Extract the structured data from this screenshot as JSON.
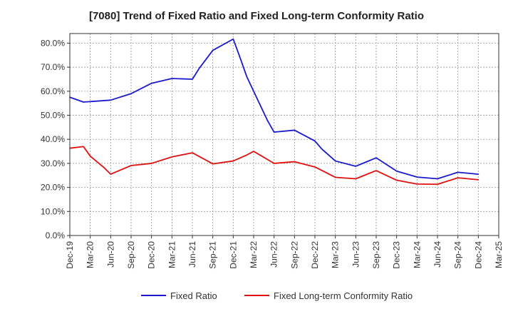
{
  "chart_data": {
    "type": "line",
    "title": "[7080]  Trend of Fixed Ratio and Fixed Long-term Conformity Ratio",
    "xlabel": "",
    "ylabel": "",
    "x_ticks": [
      "Dec-19",
      "Mar-20",
      "Jun-20",
      "Sep-20",
      "Dec-20",
      "Mar-21",
      "Jun-21",
      "Sep-21",
      "Dec-21",
      "Mar-22",
      "Jun-22",
      "Sep-22",
      "Dec-22",
      "Mar-23",
      "Jun-23",
      "Sep-23",
      "Dec-23",
      "Mar-24",
      "Jun-24",
      "Sep-24",
      "Dec-24",
      "Mar-25"
    ],
    "y_ticks": [
      "0.0%",
      "10.0%",
      "20.0%",
      "30.0%",
      "40.0%",
      "50.0%",
      "60.0%",
      "70.0%",
      "80.0%"
    ],
    "ylim": [
      0,
      84
    ],
    "grid": true,
    "legend_position": "bottom",
    "series": [
      {
        "name": "Fixed Ratio",
        "color": "#1a1acc",
        "points": [
          [
            "Dec-19",
            57.5
          ],
          [
            "Feb-20",
            55.5
          ],
          [
            "Jun-20",
            56.3
          ],
          [
            "Sep-20",
            59.0
          ],
          [
            "Dec-20",
            63.3
          ],
          [
            "Mar-21",
            65.3
          ],
          [
            "Jun-21",
            65.0
          ],
          [
            "Jul-21",
            69.5
          ],
          [
            "Sep-21",
            77.0
          ],
          [
            "Dec-21",
            81.7
          ],
          [
            "Jan-22",
            74.0
          ],
          [
            "Feb-22",
            66.0
          ],
          [
            "Mar-22",
            60.0
          ],
          [
            "May-22",
            48.0
          ],
          [
            "Jun-22",
            43.0
          ],
          [
            "Sep-22",
            43.8
          ],
          [
            "Dec-22",
            39.3
          ],
          [
            "Jan-23",
            36.0
          ],
          [
            "Mar-23",
            31.0
          ],
          [
            "Jun-23",
            28.8
          ],
          [
            "Sep-23",
            32.3
          ],
          [
            "Dec-23",
            26.8
          ],
          [
            "Mar-24",
            24.3
          ],
          [
            "Jun-24",
            23.6
          ],
          [
            "Sep-24",
            26.3
          ],
          [
            "Dec-24",
            25.5
          ]
        ]
      },
      {
        "name": "Fixed Long-term Conformity Ratio",
        "color": "#e01010",
        "points": [
          [
            "Dec-19",
            36.3
          ],
          [
            "Feb-20",
            37.0
          ],
          [
            "Mar-20",
            33.0
          ],
          [
            "May-20",
            28.3
          ],
          [
            "Jun-20",
            25.5
          ],
          [
            "Sep-20",
            29.1
          ],
          [
            "Dec-20",
            30.0
          ],
          [
            "Mar-21",
            32.7
          ],
          [
            "Jun-21",
            34.4
          ],
          [
            "Sep-21",
            29.8
          ],
          [
            "Dec-21",
            31.0
          ],
          [
            "Feb-22",
            33.5
          ],
          [
            "Mar-22",
            35.0
          ],
          [
            "Jun-22",
            30.0
          ],
          [
            "Sep-22",
            30.7
          ],
          [
            "Dec-22",
            28.5
          ],
          [
            "Mar-23",
            24.2
          ],
          [
            "Jun-23",
            23.6
          ],
          [
            "Sep-23",
            27.0
          ],
          [
            "Dec-23",
            23.0
          ],
          [
            "Mar-24",
            21.4
          ],
          [
            "Jun-24",
            21.3
          ],
          [
            "Sep-24",
            24.0
          ],
          [
            "Dec-24",
            23.2
          ]
        ]
      }
    ]
  }
}
